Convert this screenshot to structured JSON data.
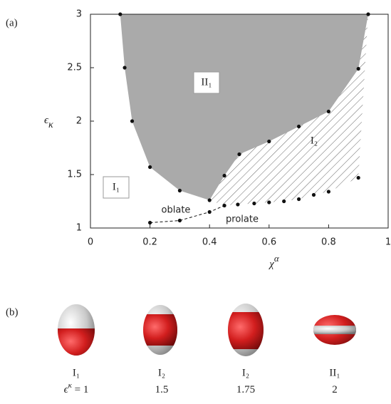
{
  "chart_data": {
    "type": "line",
    "panel_label": "(a)",
    "xlabel": [
      "χ",
      "α"
    ],
    "ylabel": [
      "ϵ",
      "κ"
    ],
    "xlim": [
      0,
      1
    ],
    "ylim": [
      1,
      3
    ],
    "xticks": [
      0,
      0.2,
      0.4,
      0.6,
      0.8,
      1
    ],
    "yticks": [
      1,
      1.5,
      2,
      2.5,
      3
    ],
    "region_color": "#aaaaaa",
    "series": [
      {
        "color": "#111111",
        "x": [
          0.1,
          0.115,
          0.14,
          0.2,
          0.3,
          0.4
        ],
        "values": [
          3,
          2.5,
          2,
          1.57,
          1.35,
          1.26
        ]
      },
      {
        "color": "#111111",
        "x": [
          0.45,
          0.5,
          0.6,
          0.7,
          0.8,
          0.9,
          0.933
        ],
        "values": [
          1.49,
          1.69,
          1.81,
          1.95,
          2.09,
          2.49,
          3
        ]
      },
      {
        "color": "#111111",
        "x": [
          0.45,
          0.495,
          0.55,
          0.6,
          0.65,
          0.7,
          0.75,
          0.8,
          0.9
        ],
        "values": [
          1.21,
          1.22,
          1.23,
          1.24,
          1.25,
          1.27,
          1.31,
          1.34,
          1.47
        ]
      },
      {
        "color": "#111111",
        "style": "dashed",
        "x": [
          0.2,
          0.3,
          0.4
        ],
        "values": [
          1.05,
          1.07,
          1.15
        ]
      }
    ],
    "annotations": [
      "II₁",
      "I₂",
      "I₁",
      "oblate",
      "prolate"
    ]
  },
  "panel_b": {
    "label": "(b)",
    "shapes": [
      {
        "phase": "I₁",
        "caption": [
          "ϵ",
          "κ",
          " = 1"
        ]
      },
      {
        "phase": "I₂",
        "caption": [
          "1.5"
        ]
      },
      {
        "phase": "I₂",
        "caption": [
          "1.75"
        ]
      },
      {
        "phase": "II₁",
        "caption": [
          "2"
        ]
      }
    ]
  }
}
